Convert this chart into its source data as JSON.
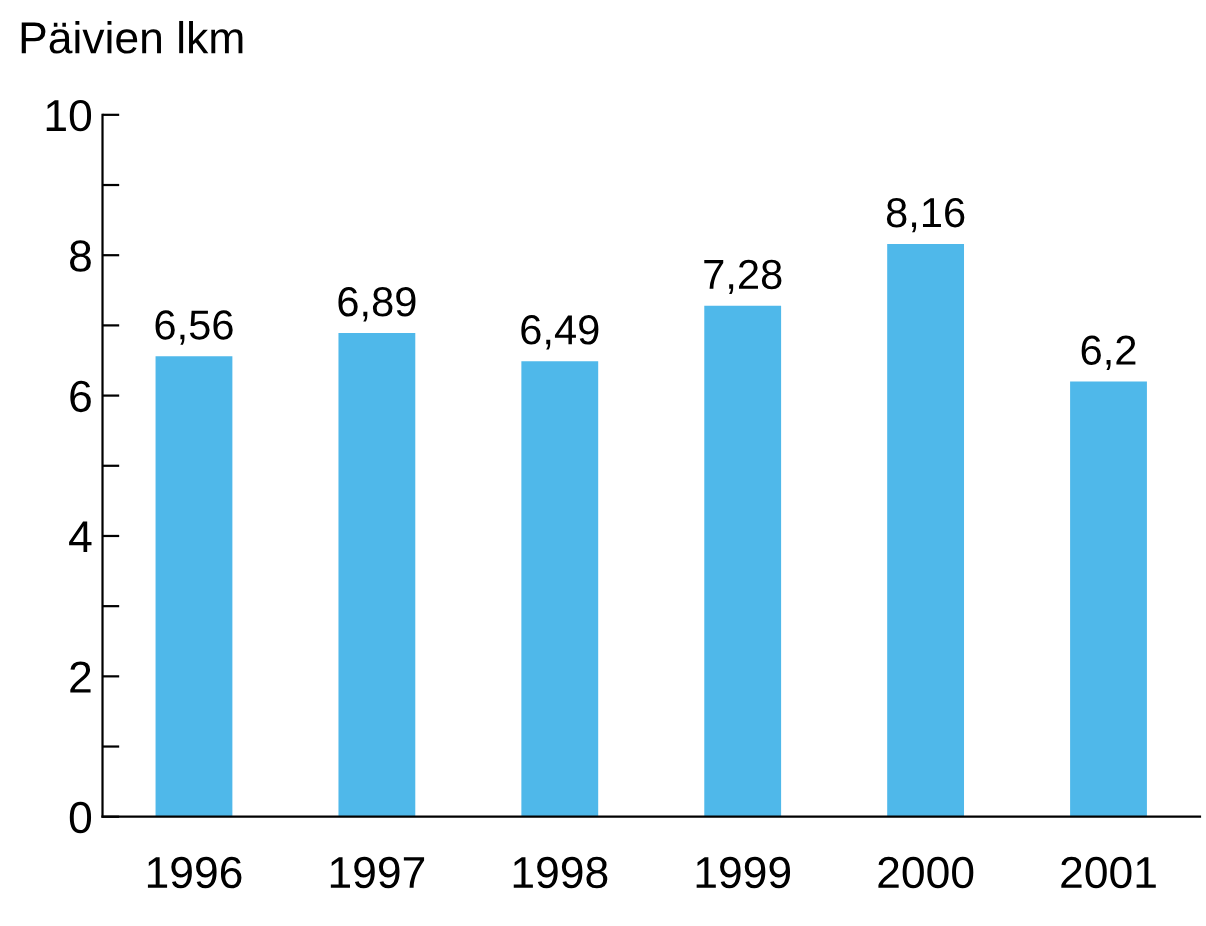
{
  "chart_data": {
    "type": "bar",
    "ylabel": "Päivien lkm",
    "categories": [
      "1996",
      "1997",
      "1998",
      "1999",
      "2000",
      "2001"
    ],
    "values": [
      6.56,
      6.89,
      6.49,
      7.28,
      8.16,
      6.2
    ],
    "value_labels": [
      "6,56",
      "6,89",
      "6,49",
      "7,28",
      "8,16",
      "6,2"
    ],
    "color": "#4fb8ea",
    "ylim": [
      0,
      10
    ],
    "yticks": [
      0,
      {
        "value": 1,
        "label": null
      },
      2,
      {
        "value": 3,
        "label": null
      },
      4,
      {
        "value": 5,
        "label": null
      },
      6,
      {
        "value": 7,
        "label": null
      },
      8,
      {
        "value": 9,
        "label": null
      },
      10
    ],
    "grid": false
  }
}
